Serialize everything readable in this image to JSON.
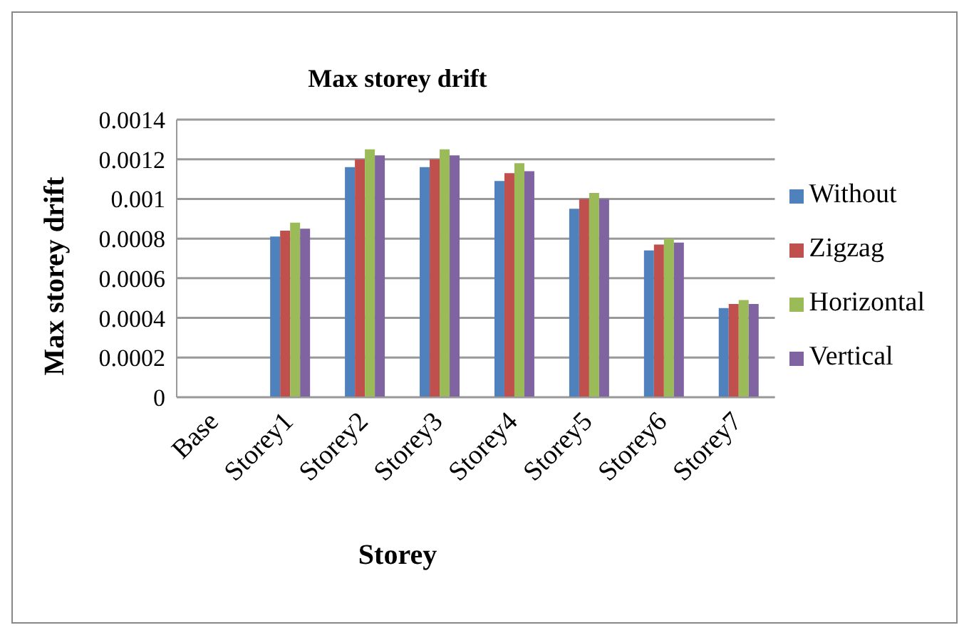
{
  "chart_data": {
    "type": "bar",
    "title": "Max storey drift",
    "xlabel": "Storey",
    "ylabel": "Max storey drift",
    "categories": [
      "Base",
      "Storey1",
      "Storey2",
      "Storey3",
      "Storey4",
      "Storey5",
      "Storey6",
      "Storey7"
    ],
    "series": [
      {
        "name": "Without",
        "color": "#4f81bd",
        "values": [
          0,
          0.00081,
          0.00116,
          0.00116,
          0.00109,
          0.00095,
          0.00074,
          0.00045
        ]
      },
      {
        "name": "Zigzag",
        "color": "#c0504d",
        "values": [
          0,
          0.00084,
          0.0012,
          0.0012,
          0.00113,
          0.001,
          0.00077,
          0.00047
        ]
      },
      {
        "name": "Horizontal",
        "color": "#9bbb59",
        "values": [
          0,
          0.00088,
          0.00125,
          0.00125,
          0.00118,
          0.00103,
          0.0008,
          0.00049
        ]
      },
      {
        "name": "Vertical",
        "color": "#8064a2",
        "values": [
          0,
          0.00085,
          0.00122,
          0.00122,
          0.00114,
          0.001,
          0.00078,
          0.00047
        ]
      }
    ],
    "ylim": [
      0,
      0.0014
    ],
    "yticks": [
      0,
      0.0002,
      0.0004,
      0.0006,
      0.0008,
      0.001,
      0.0012,
      0.0014
    ],
    "grid": "y",
    "legend": "right"
  }
}
